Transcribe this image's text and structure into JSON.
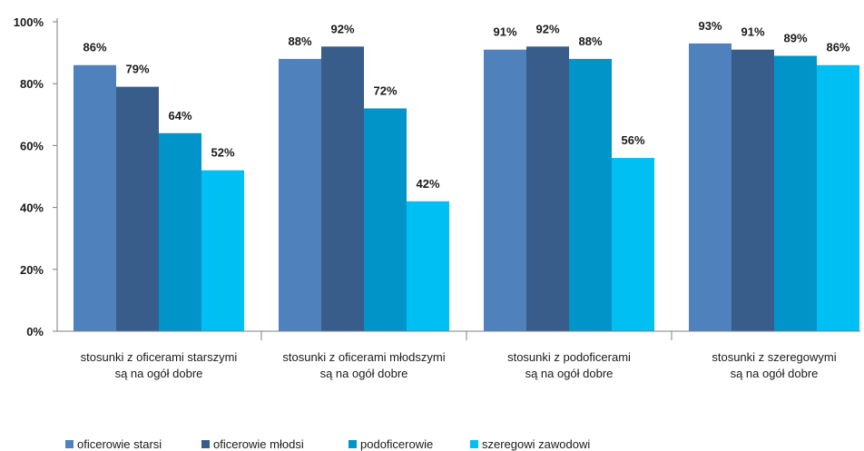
{
  "chart_data": {
    "type": "bar",
    "categories": [
      [
        "stosunki z oficerami starszymi",
        "są na ogół dobre"
      ],
      [
        "stosunki z oficerami młodszymi",
        "są na ogół dobre"
      ],
      [
        "stosunki z podoficerami",
        "są na ogół dobre"
      ],
      [
        "stosunki z szeregowymi",
        "są na ogół dobre"
      ]
    ],
    "series": [
      {
        "name": "oficerowie starsi",
        "color": "#4f81bd",
        "values": [
          86,
          88,
          91,
          93
        ]
      },
      {
        "name": "oficerowie młodsi",
        "color": "#385d8a",
        "values": [
          79,
          92,
          92,
          91
        ]
      },
      {
        "name": "podoficerowie",
        "color": "#0094c8",
        "values": [
          64,
          72,
          88,
          89
        ]
      },
      {
        "name": "szeregowi zawodowi",
        "color": "#00bff3",
        "values": [
          52,
          42,
          56,
          86
        ]
      }
    ],
    "ylim": [
      0,
      100
    ],
    "yticks": [
      0,
      20,
      40,
      60,
      80,
      100
    ],
    "ytick_labels": [
      "0%",
      "20%",
      "40%",
      "60%",
      "80%",
      "100%"
    ],
    "value_suffix": "%",
    "grid": false,
    "legend": "bottom-left"
  }
}
